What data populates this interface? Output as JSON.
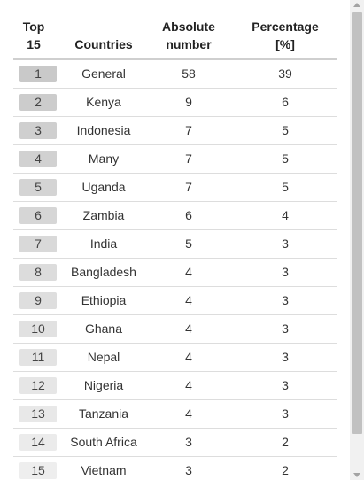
{
  "table": {
    "headers": {
      "rank": "Top 15",
      "country": "Countries",
      "absolute": "Absolute number",
      "percentage": "Percentage [%]"
    },
    "rows": [
      {
        "rank": "1",
        "country": "General",
        "absolute": "58",
        "percentage": "39",
        "badge": "#c9c9c9"
      },
      {
        "rank": "2",
        "country": "Kenya",
        "absolute": "9",
        "percentage": "6",
        "badge": "#cccccc"
      },
      {
        "rank": "3",
        "country": "Indonesia",
        "absolute": "7",
        "percentage": "5",
        "badge": "#cfcfcf"
      },
      {
        "rank": "4",
        "country": "Many",
        "absolute": "7",
        "percentage": "5",
        "badge": "#d1d1d1"
      },
      {
        "rank": "5",
        "country": "Uganda",
        "absolute": "7",
        "percentage": "5",
        "badge": "#d4d4d4"
      },
      {
        "rank": "6",
        "country": "Zambia",
        "absolute": "6",
        "percentage": "4",
        "badge": "#d6d6d6"
      },
      {
        "rank": "7",
        "country": "India",
        "absolute": "5",
        "percentage": "3",
        "badge": "#d9d9d9"
      },
      {
        "rank": "8",
        "country": "Bangladesh",
        "absolute": "4",
        "percentage": "3",
        "badge": "#dcdcdc"
      },
      {
        "rank": "9",
        "country": "Ethiopia",
        "absolute": "4",
        "percentage": "3",
        "badge": "#dedede"
      },
      {
        "rank": "10",
        "country": "Ghana",
        "absolute": "4",
        "percentage": "3",
        "badge": "#e1e1e1"
      },
      {
        "rank": "11",
        "country": "Nepal",
        "absolute": "4",
        "percentage": "3",
        "badge": "#e3e3e3"
      },
      {
        "rank": "12",
        "country": "Nigeria",
        "absolute": "4",
        "percentage": "3",
        "badge": "#e6e6e6"
      },
      {
        "rank": "13",
        "country": "Tanzania",
        "absolute": "4",
        "percentage": "3",
        "badge": "#e8e8e8"
      },
      {
        "rank": "14",
        "country": "South Africa",
        "absolute": "3",
        "percentage": "2",
        "badge": "#ebebeb"
      },
      {
        "rank": "15",
        "country": "Vietnam",
        "absolute": "3",
        "percentage": "2",
        "badge": "#eeeeee"
      }
    ]
  }
}
